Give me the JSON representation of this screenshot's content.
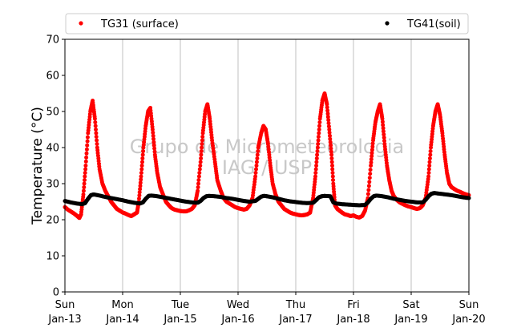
{
  "chart_data": {
    "type": "scatter",
    "title": "",
    "xlabel": "",
    "ylabel": "Temperature (°C)",
    "ylim": [
      0,
      70
    ],
    "yticks": [
      0,
      10,
      20,
      30,
      40,
      50,
      60,
      70
    ],
    "xlim": [
      0,
      7
    ],
    "x_unit": "days since Sun Jan-13",
    "xticks": [
      {
        "x": 0,
        "day": "Sun",
        "date": "Jan-13"
      },
      {
        "x": 1,
        "day": "Mon",
        "date": "Jan-14"
      },
      {
        "x": 2,
        "day": "Tue",
        "date": "Jan-15"
      },
      {
        "x": 3,
        "day": "Wed",
        "date": "Jan-16"
      },
      {
        "x": 4,
        "day": "Thu",
        "date": "Jan-17"
      },
      {
        "x": 5,
        "day": "Fri",
        "date": "Jan-18"
      },
      {
        "x": 6,
        "day": "Sat",
        "date": "Jan-19"
      },
      {
        "x": 7,
        "day": "Sun",
        "date": "Jan-20"
      }
    ],
    "grid": "vertical",
    "legend": "top",
    "watermark": [
      "Grupo de Micrometeorologia",
      "IAG / USP"
    ],
    "series": [
      {
        "name": "TG31 (surface)",
        "color": "#ff0000",
        "points": [
          [
            0,
            23.5
          ],
          [
            0.05,
            22.8
          ],
          [
            0.1,
            22.3
          ],
          [
            0.15,
            21.8
          ],
          [
            0.2,
            21.2
          ],
          [
            0.25,
            20.5
          ],
          [
            0.28,
            21.5
          ],
          [
            0.32,
            27
          ],
          [
            0.36,
            35
          ],
          [
            0.4,
            44
          ],
          [
            0.44,
            50
          ],
          [
            0.48,
            53
          ],
          [
            0.52,
            48
          ],
          [
            0.56,
            40
          ],
          [
            0.6,
            34
          ],
          [
            0.65,
            30
          ],
          [
            0.7,
            28
          ],
          [
            0.75,
            26.5
          ],
          [
            0.8,
            25
          ],
          [
            0.85,
            24
          ],
          [
            0.9,
            23
          ],
          [
            0.95,
            22.5
          ],
          [
            1.0,
            22
          ],
          [
            1.05,
            21.7
          ],
          [
            1.1,
            21.3
          ],
          [
            1.15,
            21
          ],
          [
            1.2,
            21.5
          ],
          [
            1.25,
            22
          ],
          [
            1.28,
            25
          ],
          [
            1.32,
            32
          ],
          [
            1.36,
            40
          ],
          [
            1.4,
            46
          ],
          [
            1.44,
            50
          ],
          [
            1.48,
            51
          ],
          [
            1.52,
            45
          ],
          [
            1.56,
            38
          ],
          [
            1.6,
            33
          ],
          [
            1.65,
            29
          ],
          [
            1.7,
            27
          ],
          [
            1.75,
            25
          ],
          [
            1.8,
            24
          ],
          [
            1.85,
            23.2
          ],
          [
            1.9,
            22.8
          ],
          [
            1.95,
            22.6
          ],
          [
            2.0,
            22.4
          ],
          [
            2.05,
            22.3
          ],
          [
            2.1,
            22.3
          ],
          [
            2.15,
            22.6
          ],
          [
            2.2,
            23
          ],
          [
            2.25,
            24
          ],
          [
            2.3,
            28
          ],
          [
            2.35,
            36
          ],
          [
            2.39,
            44
          ],
          [
            2.43,
            50
          ],
          [
            2.47,
            52
          ],
          [
            2.51,
            48
          ],
          [
            2.55,
            42
          ],
          [
            2.6,
            36
          ],
          [
            2.64,
            31
          ],
          [
            2.7,
            28
          ],
          [
            2.75,
            26
          ],
          [
            2.8,
            25
          ],
          [
            2.85,
            24.5
          ],
          [
            2.9,
            24
          ],
          [
            2.95,
            23.5
          ],
          [
            3.0,
            23.2
          ],
          [
            3.05,
            23
          ],
          [
            3.1,
            22.8
          ],
          [
            3.15,
            23
          ],
          [
            3.2,
            24
          ],
          [
            3.25,
            26
          ],
          [
            3.3,
            32
          ],
          [
            3.35,
            40
          ],
          [
            3.4,
            44
          ],
          [
            3.44,
            46
          ],
          [
            3.48,
            45
          ],
          [
            3.52,
            41
          ],
          [
            3.56,
            35
          ],
          [
            3.6,
            30
          ],
          [
            3.65,
            27
          ],
          [
            3.7,
            25
          ],
          [
            3.75,
            24
          ],
          [
            3.8,
            23
          ],
          [
            3.85,
            22.5
          ],
          [
            3.9,
            22
          ],
          [
            3.95,
            21.7
          ],
          [
            4.0,
            21.5
          ],
          [
            4.05,
            21.3
          ],
          [
            4.1,
            21.2
          ],
          [
            4.15,
            21.3
          ],
          [
            4.2,
            21.5
          ],
          [
            4.25,
            22
          ],
          [
            4.3,
            26
          ],
          [
            4.34,
            32
          ],
          [
            4.38,
            40
          ],
          [
            4.42,
            48
          ],
          [
            4.46,
            53
          ],
          [
            4.5,
            55
          ],
          [
            4.54,
            52
          ],
          [
            4.58,
            45
          ],
          [
            4.62,
            38
          ],
          [
            4.65,
            30
          ],
          [
            4.68,
            24
          ],
          [
            4.72,
            23
          ],
          [
            4.76,
            22.5
          ],
          [
            4.8,
            22
          ],
          [
            4.85,
            21.5
          ],
          [
            4.9,
            21.3
          ],
          [
            4.95,
            21
          ],
          [
            5.0,
            21.2
          ],
          [
            5.05,
            20.8
          ],
          [
            5.1,
            20.6
          ],
          [
            5.15,
            21
          ],
          [
            5.2,
            22.5
          ],
          [
            5.25,
            26
          ],
          [
            5.3,
            35
          ],
          [
            5.34,
            42
          ],
          [
            5.38,
            47
          ],
          [
            5.42,
            50
          ],
          [
            5.46,
            52
          ],
          [
            5.5,
            48
          ],
          [
            5.54,
            41
          ],
          [
            5.58,
            35
          ],
          [
            5.62,
            31
          ],
          [
            5.66,
            28
          ],
          [
            5.7,
            26.5
          ],
          [
            5.75,
            25.5
          ],
          [
            5.8,
            24.8
          ],
          [
            5.85,
            24.4
          ],
          [
            5.9,
            24
          ],
          [
            5.95,
            23.7
          ],
          [
            6.0,
            23.5
          ],
          [
            6.05,
            23.2
          ],
          [
            6.1,
            23
          ],
          [
            6.15,
            23.2
          ],
          [
            6.2,
            24
          ],
          [
            6.25,
            26
          ],
          [
            6.3,
            32
          ],
          [
            6.34,
            40
          ],
          [
            6.38,
            46
          ],
          [
            6.42,
            50
          ],
          [
            6.46,
            52
          ],
          [
            6.5,
            49
          ],
          [
            6.54,
            44
          ],
          [
            6.58,
            38
          ],
          [
            6.62,
            33
          ],
          [
            6.66,
            30
          ],
          [
            6.7,
            29
          ],
          [
            6.75,
            28.5
          ],
          [
            6.8,
            28
          ],
          [
            6.85,
            27.7
          ],
          [
            6.9,
            27.3
          ],
          [
            6.95,
            27
          ],
          [
            7.0,
            26.8
          ]
        ]
      },
      {
        "name": "TG41(soil)",
        "color": "#000000",
        "points": [
          [
            0,
            25.2
          ],
          [
            0.1,
            24.8
          ],
          [
            0.2,
            24.5
          ],
          [
            0.3,
            24.3
          ],
          [
            0.35,
            24.6
          ],
          [
            0.4,
            25.8
          ],
          [
            0.45,
            26.8
          ],
          [
            0.5,
            27
          ],
          [
            0.6,
            26.7
          ],
          [
            0.7,
            26.3
          ],
          [
            0.8,
            26
          ],
          [
            0.9,
            25.7
          ],
          [
            1.0,
            25.4
          ],
          [
            1.1,
            25
          ],
          [
            1.2,
            24.7
          ],
          [
            1.3,
            24.5
          ],
          [
            1.35,
            24.8
          ],
          [
            1.4,
            25.8
          ],
          [
            1.45,
            26.6
          ],
          [
            1.5,
            26.7
          ],
          [
            1.6,
            26.5
          ],
          [
            1.7,
            26.2
          ],
          [
            1.8,
            25.9
          ],
          [
            1.9,
            25.6
          ],
          [
            2.0,
            25.3
          ],
          [
            2.1,
            25
          ],
          [
            2.2,
            24.8
          ],
          [
            2.3,
            24.7
          ],
          [
            2.35,
            25.2
          ],
          [
            2.4,
            26
          ],
          [
            2.45,
            26.5
          ],
          [
            2.5,
            26.6
          ],
          [
            2.6,
            26.5
          ],
          [
            2.7,
            26.3
          ],
          [
            2.8,
            26
          ],
          [
            2.9,
            25.8
          ],
          [
            3.0,
            25.5
          ],
          [
            3.1,
            25.2
          ],
          [
            3.2,
            25
          ],
          [
            3.3,
            25.2
          ],
          [
            3.35,
            25.8
          ],
          [
            3.4,
            26.4
          ],
          [
            3.45,
            26.6
          ],
          [
            3.5,
            26.5
          ],
          [
            3.6,
            26.2
          ],
          [
            3.7,
            25.8
          ],
          [
            3.8,
            25.4
          ],
          [
            3.9,
            25.1
          ],
          [
            4.0,
            24.9
          ],
          [
            4.1,
            24.7
          ],
          [
            4.2,
            24.6
          ],
          [
            4.3,
            24.7
          ],
          [
            4.35,
            25.4
          ],
          [
            4.4,
            26.2
          ],
          [
            4.45,
            26.5
          ],
          [
            4.5,
            26.6
          ],
          [
            4.6,
            26.5
          ],
          [
            4.65,
            24.8
          ],
          [
            4.7,
            24.5
          ],
          [
            4.8,
            24.3
          ],
          [
            4.9,
            24.2
          ],
          [
            5.0,
            24.1
          ],
          [
            5.1,
            24
          ],
          [
            5.2,
            24.1
          ],
          [
            5.25,
            24.8
          ],
          [
            5.3,
            25.8
          ],
          [
            5.35,
            26.5
          ],
          [
            5.4,
            26.7
          ],
          [
            5.5,
            26.5
          ],
          [
            5.6,
            26.2
          ],
          [
            5.7,
            25.8
          ],
          [
            5.8,
            25.5
          ],
          [
            5.9,
            25.2
          ],
          [
            6.0,
            25
          ],
          [
            6.1,
            24.8
          ],
          [
            6.2,
            24.8
          ],
          [
            6.25,
            25.5
          ],
          [
            6.3,
            26.5
          ],
          [
            6.35,
            27.2
          ],
          [
            6.4,
            27.4
          ],
          [
            6.5,
            27.2
          ],
          [
            6.6,
            27
          ],
          [
            6.7,
            26.8
          ],
          [
            6.8,
            26.5
          ],
          [
            6.9,
            26.2
          ],
          [
            7.0,
            26
          ]
        ]
      }
    ]
  }
}
